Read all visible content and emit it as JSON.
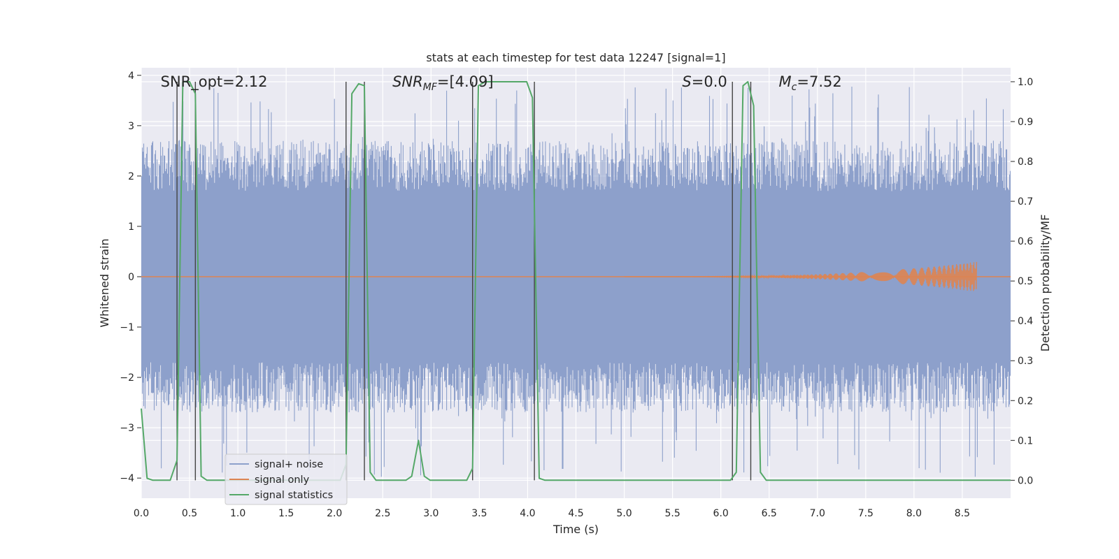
{
  "chart_data": {
    "type": "line",
    "title": "stats at each timestep for test data 12247 [signal=1]",
    "xlabel": "Time (s)",
    "ylabel_left": "Whitened strain",
    "ylabel_right": "Detection probability/MF",
    "xlim": [
      0,
      9.0
    ],
    "ylim_left": [
      -4.4,
      4.15
    ],
    "ylim_right": [
      -0.045,
      1.035
    ],
    "x_ticks": [
      "0.0",
      "0.5",
      "1.0",
      "1.5",
      "2.0",
      "2.5",
      "3.0",
      "3.5",
      "4.0",
      "4.5",
      "5.0",
      "5.5",
      "6.0",
      "6.5",
      "7.0",
      "7.5",
      "8.0",
      "8.5"
    ],
    "y_ticks_left": [
      "−4",
      "−3",
      "−2",
      "−1",
      "0",
      "1",
      "2",
      "3",
      "4"
    ],
    "y_ticks_right": [
      "0.0",
      "0.1",
      "0.2",
      "0.3",
      "0.4",
      "0.5",
      "0.6",
      "0.7",
      "0.8",
      "0.9",
      "1.0"
    ],
    "grid": true,
    "legend_position": "lower-left",
    "annotations": [
      {
        "text": "SNR_opt=2.12",
        "x": 0.2
      },
      {
        "text": "SNR_MF=[4.09]",
        "x": 2.6
      },
      {
        "text": "S=0.0",
        "x": 5.6
      },
      {
        "text": "M_c=7.52",
        "x": 6.6
      }
    ],
    "vertical_lines_x": [
      0.37,
      0.56,
      2.12,
      2.31,
      3.43,
      4.07,
      6.12,
      6.31
    ],
    "series": [
      {
        "name": "signal+ noise",
        "color": "#8da0cb",
        "axis": "left",
        "noise_band": [
          -1.7,
          1.45
        ],
        "envelope_typical": [
          -2.3,
          2.3
        ],
        "spike_extent": [
          -4.0,
          3.8
        ]
      },
      {
        "name": "signal only",
        "color": "#dd8452",
        "axis": "left",
        "chirp_start_x": 5.0,
        "chirp_end_x": 8.65,
        "chirp_peak_amplitude": 0.3
      },
      {
        "name": "signal statistics",
        "color": "#55a868",
        "axis": "right",
        "x": [
          0.0,
          0.06,
          0.12,
          0.3,
          0.37,
          0.43,
          0.5,
          0.56,
          0.62,
          0.68,
          2.06,
          2.12,
          2.18,
          2.25,
          2.31,
          2.37,
          2.43,
          2.74,
          2.8,
          2.87,
          2.93,
          2.99,
          3.37,
          3.43,
          3.49,
          3.56,
          3.99,
          4.05,
          4.12,
          4.18,
          6.1,
          6.16,
          6.23,
          6.28,
          6.34,
          6.41,
          6.47,
          7.0,
          9.0
        ],
        "values": [
          0.18,
          0.005,
          0.0,
          0.0,
          0.05,
          1.0,
          1.0,
          0.97,
          0.01,
          0.0,
          0.0,
          0.04,
          0.97,
          0.995,
          0.99,
          0.02,
          0.0,
          0.0,
          0.01,
          0.1,
          0.01,
          0.0,
          0.0,
          0.03,
          0.99,
          1.0,
          1.0,
          0.96,
          0.005,
          0.0,
          0.0,
          0.02,
          0.99,
          1.0,
          0.94,
          0.02,
          0.0,
          0.0,
          0.0
        ]
      }
    ]
  }
}
